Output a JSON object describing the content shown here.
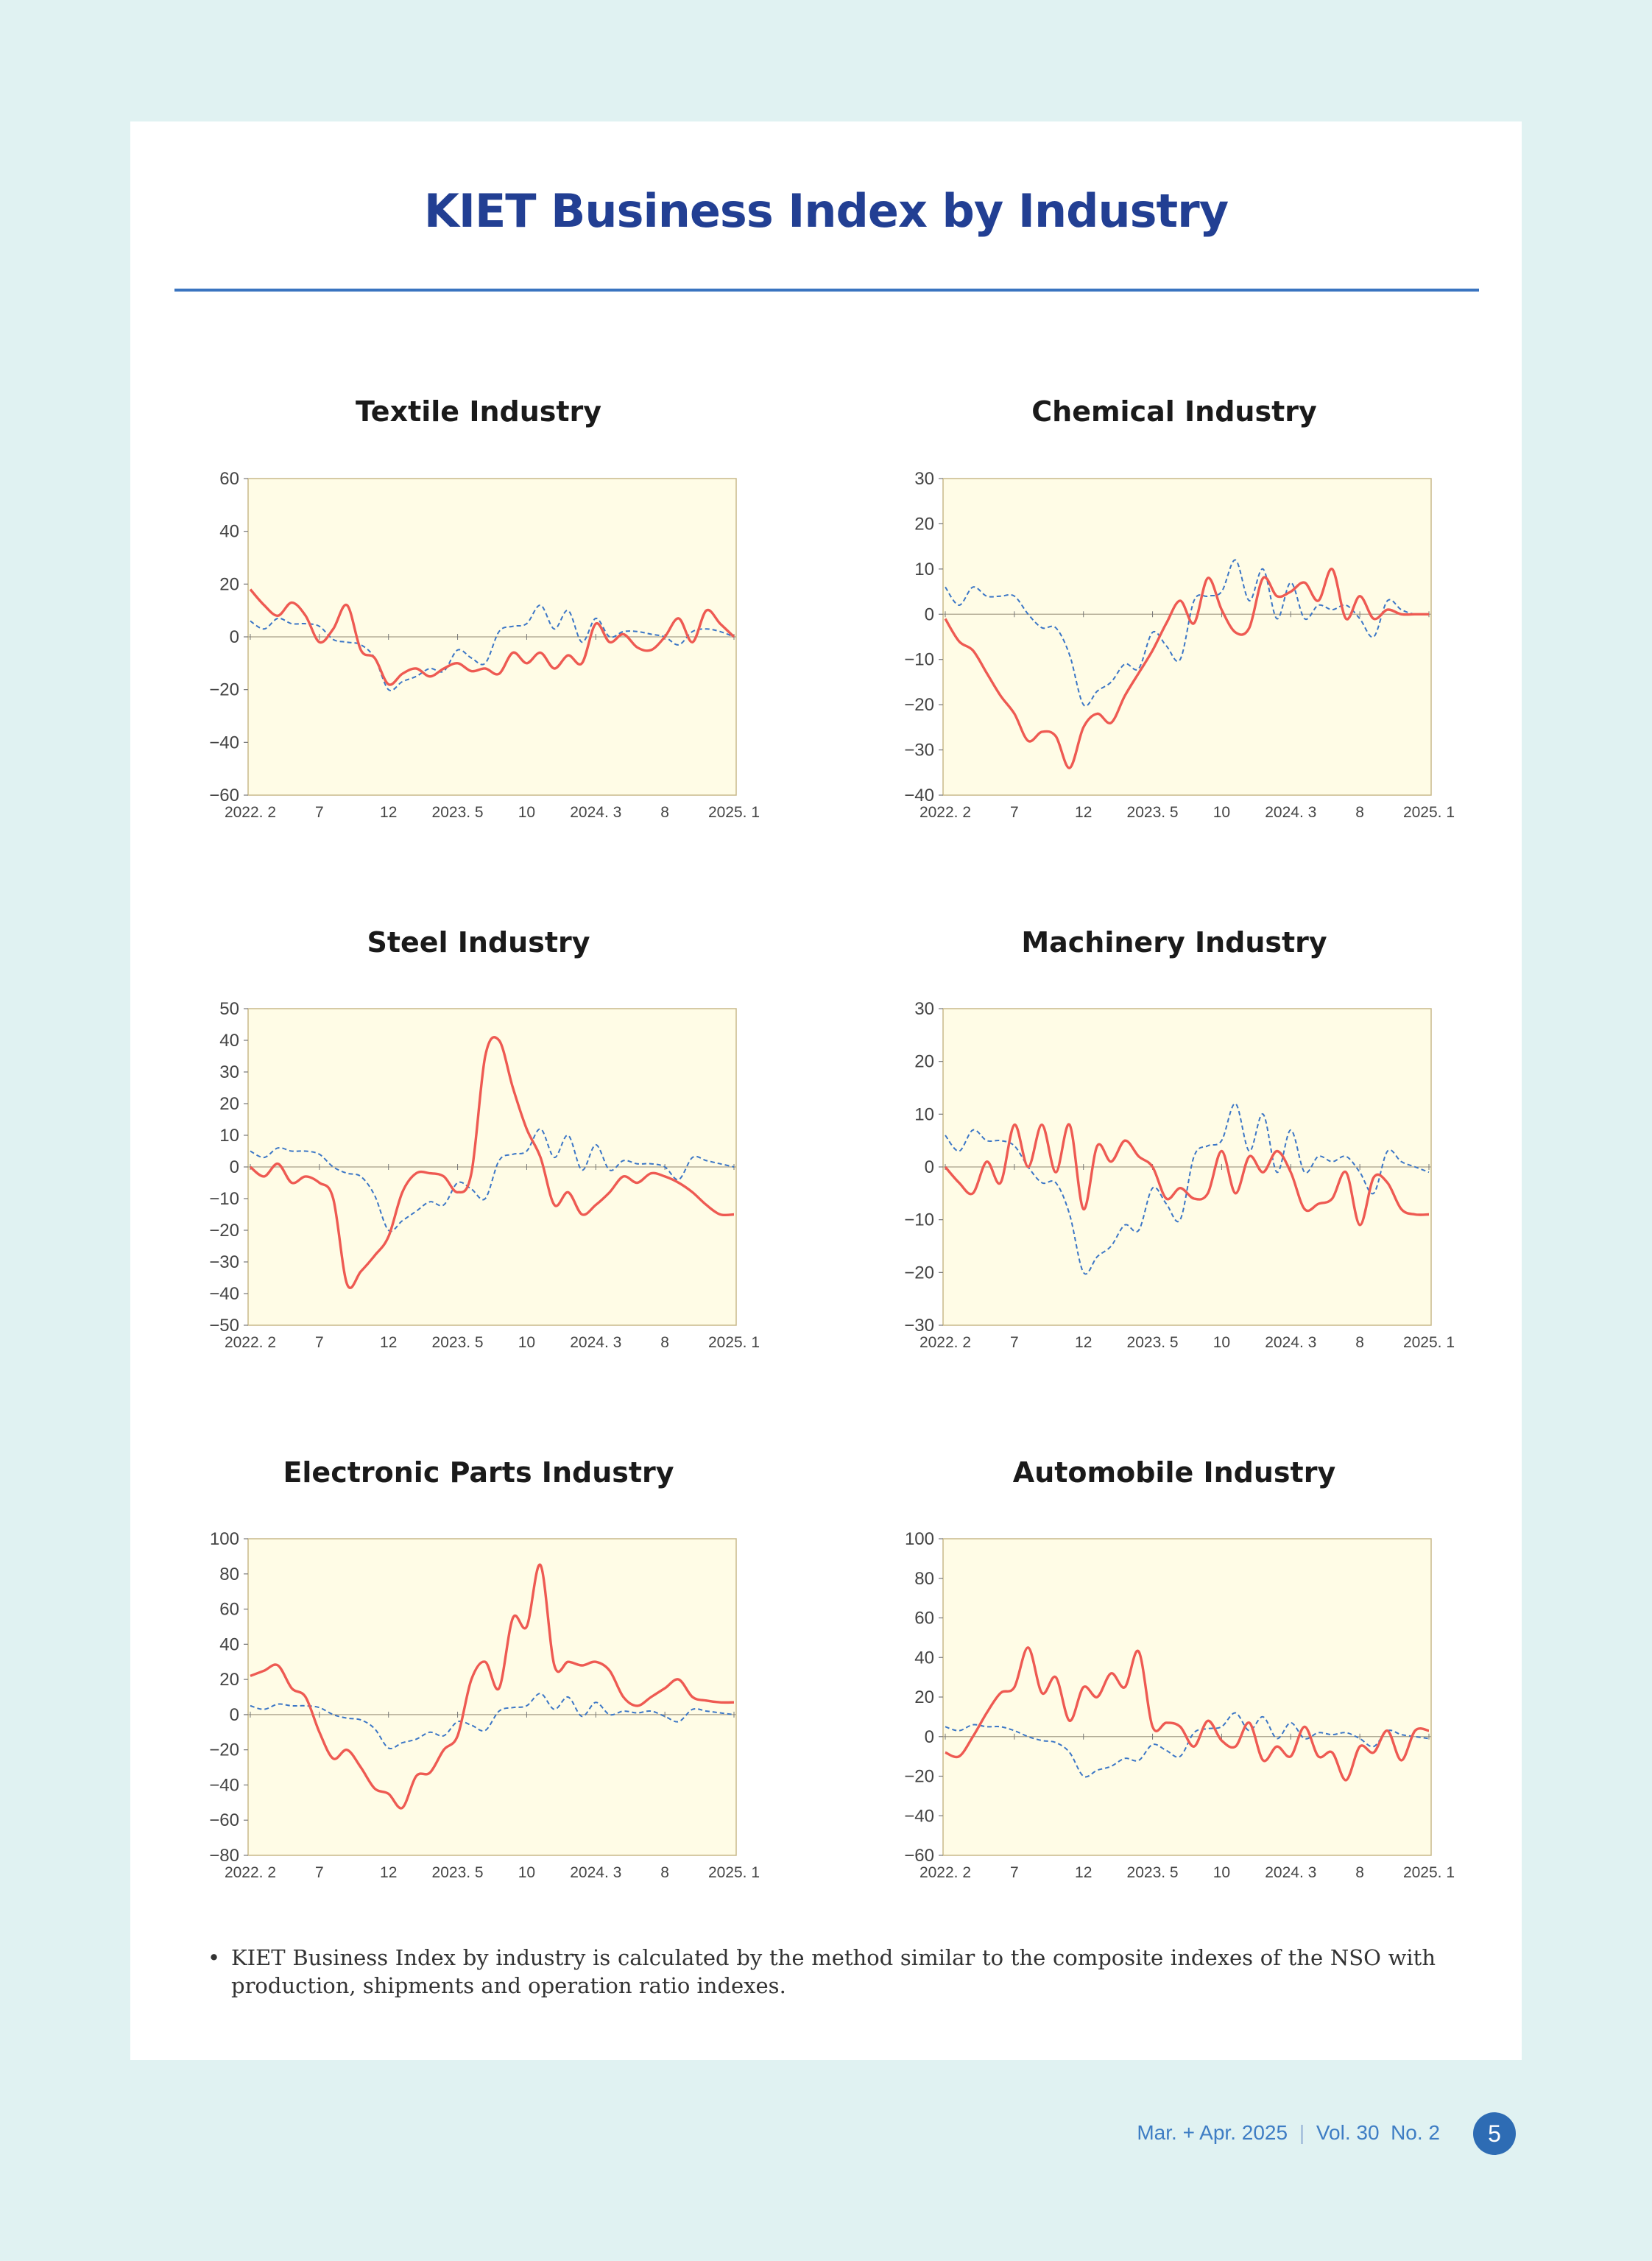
{
  "page": {
    "title": "KIET Business Index by Industry",
    "footnote_bullet": "•",
    "footnote": "KIET Business Index by industry is calculated by the method similar to the composite indexes of the NSO with production, shipments and operation ratio indexes.",
    "footer": {
      "issue": "Mar. + Apr. 2025",
      "separator": "|",
      "volume": "Vol. 30  No. 2",
      "page_number": "5"
    }
  },
  "colors": {
    "background": "#e0f2f2",
    "title": "#223f93",
    "rule": "#3a74c0",
    "plot_fill": "#fffce6",
    "plot_border": "#c9b98a",
    "solid_series": "#ee5a52",
    "dashed_series": "#3b76c6",
    "footer": "#3e7dc4"
  },
  "chart_data": [
    {
      "type": "line",
      "title": "Textile Industry",
      "x_tick_labels": [
        "2022. 2",
        "7",
        "12",
        "2023. 5",
        "10",
        "2024. 3",
        "8",
        "2025. 1"
      ],
      "x_tick_months": [
        0,
        5,
        10,
        15,
        20,
        25,
        30,
        35
      ],
      "ylim": [
        -60,
        60
      ],
      "yticks": [
        -60,
        -40,
        -20,
        0,
        20,
        40,
        60
      ],
      "series": [
        {
          "style": "solid",
          "color": "#ee5a52",
          "values": [
            18,
            12,
            8,
            13,
            8,
            -2,
            3,
            12,
            -5,
            -8,
            -18,
            -14,
            -12,
            -15,
            -12,
            -10,
            -13,
            -12,
            -14,
            -6,
            -10,
            -6,
            -12,
            -7,
            -10,
            5,
            -2,
            1,
            -4,
            -5,
            0,
            7,
            -2,
            10,
            5,
            0
          ]
        },
        {
          "style": "dashed",
          "color": "#3b76c6",
          "values": [
            6,
            3,
            7,
            5,
            5,
            4,
            -1,
            -2,
            -3,
            -8,
            -20,
            -17,
            -15,
            -12,
            -13,
            -5,
            -8,
            -10,
            2,
            4,
            5,
            12,
            3,
            10,
            -2,
            7,
            0,
            2,
            2,
            1,
            0,
            -3,
            2,
            3,
            2,
            0
          ]
        }
      ]
    },
    {
      "type": "line",
      "title": "Chemical Industry",
      "x_tick_labels": [
        "2022. 2",
        "7",
        "12",
        "2023. 5",
        "10",
        "2024. 3",
        "8",
        "2025. 1"
      ],
      "x_tick_months": [
        0,
        5,
        10,
        15,
        20,
        25,
        30,
        35
      ],
      "ylim": [
        -40,
        30
      ],
      "yticks": [
        -40,
        -30,
        -20,
        -10,
        0,
        10,
        20,
        30
      ],
      "series": [
        {
          "style": "solid",
          "color": "#ee5a52",
          "values": [
            -1,
            -6,
            -8,
            -13,
            -18,
            -22,
            -28,
            -26,
            -27,
            -34,
            -25,
            -22,
            -24,
            -18,
            -13,
            -8,
            -2,
            3,
            -2,
            8,
            1,
            -4,
            -3,
            8,
            4,
            5,
            7,
            3,
            10,
            -1,
            4,
            -1,
            1,
            0,
            0,
            0
          ]
        },
        {
          "style": "dashed",
          "color": "#3b76c6",
          "values": [
            6,
            2,
            6,
            4,
            4,
            4,
            0,
            -3,
            -3,
            -9,
            -20,
            -17,
            -15,
            -11,
            -12,
            -4,
            -7,
            -10,
            3,
            4,
            5,
            12,
            3,
            10,
            -1,
            7,
            -1,
            2,
            1,
            2,
            -1,
            -5,
            3,
            1,
            0,
            0
          ]
        }
      ]
    },
    {
      "type": "line",
      "title": "Steel Industry",
      "x_tick_labels": [
        "2022. 2",
        "7",
        "12",
        "2023. 5",
        "10",
        "2024. 3",
        "8",
        "2025. 1"
      ],
      "x_tick_months": [
        0,
        5,
        10,
        15,
        20,
        25,
        30,
        35
      ],
      "ylim": [
        -50,
        50
      ],
      "yticks": [
        -50,
        -40,
        -30,
        -20,
        -10,
        0,
        10,
        20,
        30,
        40,
        50
      ],
      "series": [
        {
          "style": "solid",
          "color": "#ee5a52",
          "values": [
            0,
            -3,
            1,
            -5,
            -3,
            -5,
            -10,
            -37,
            -33,
            -28,
            -22,
            -8,
            -2,
            -2,
            -3,
            -8,
            -2,
            35,
            40,
            25,
            12,
            3,
            -12,
            -8,
            -15,
            -12,
            -8,
            -3,
            -5,
            -2,
            -3,
            -5,
            -8,
            -12,
            -15,
            -15
          ]
        },
        {
          "style": "dashed",
          "color": "#3b76c6",
          "values": [
            5,
            3,
            6,
            5,
            5,
            4,
            0,
            -2,
            -3,
            -9,
            -20,
            -17,
            -14,
            -11,
            -12,
            -5,
            -7,
            -10,
            2,
            4,
            5,
            12,
            3,
            10,
            -1,
            7,
            -1,
            2,
            1,
            1,
            0,
            -4,
            3,
            2,
            1,
            0
          ]
        }
      ]
    },
    {
      "type": "line",
      "title": "Machinery Industry",
      "x_tick_labels": [
        "2022. 2",
        "7",
        "12",
        "2023. 5",
        "10",
        "2024. 3",
        "8",
        "2025. 1"
      ],
      "x_tick_months": [
        0,
        5,
        10,
        15,
        20,
        25,
        30,
        35
      ],
      "ylim": [
        -30,
        30
      ],
      "yticks": [
        -30,
        -20,
        -10,
        0,
        10,
        20,
        30
      ],
      "series": [
        {
          "style": "solid",
          "color": "#ee5a52",
          "values": [
            0,
            -3,
            -5,
            1,
            -3,
            8,
            0,
            8,
            -1,
            8,
            -8,
            4,
            1,
            5,
            2,
            0,
            -6,
            -4,
            -6,
            -5,
            3,
            -5,
            2,
            -1,
            3,
            -1,
            -8,
            -7,
            -6,
            -1,
            -11,
            -2,
            -3,
            -8,
            -9,
            -9
          ]
        },
        {
          "style": "dashed",
          "color": "#3b76c6",
          "values": [
            6,
            3,
            7,
            5,
            5,
            4,
            0,
            -3,
            -3,
            -9,
            -20,
            -17,
            -15,
            -11,
            -12,
            -4,
            -7,
            -10,
            2,
            4,
            5,
            12,
            3,
            10,
            -1,
            7,
            -1,
            2,
            1,
            2,
            -1,
            -5,
            3,
            1,
            0,
            -1
          ]
        }
      ]
    },
    {
      "type": "line",
      "title": "Electronic Parts Industry",
      "x_tick_labels": [
        "2022. 2",
        "7",
        "12",
        "2023. 5",
        "10",
        "2024. 3",
        "8",
        "2025. 1"
      ],
      "x_tick_months": [
        0,
        5,
        10,
        15,
        20,
        25,
        30,
        35
      ],
      "ylim": [
        -80,
        100
      ],
      "yticks": [
        -80,
        -60,
        -40,
        -20,
        0,
        20,
        40,
        60,
        80,
        100
      ],
      "series": [
        {
          "style": "solid",
          "color": "#ee5a52",
          "values": [
            22,
            25,
            28,
            15,
            10,
            -10,
            -25,
            -20,
            -30,
            -42,
            -45,
            -53,
            -35,
            -33,
            -20,
            -12,
            20,
            30,
            15,
            55,
            50,
            85,
            28,
            30,
            28,
            30,
            25,
            10,
            5,
            10,
            15,
            20,
            10,
            8,
            7,
            7
          ]
        },
        {
          "style": "dashed",
          "color": "#3b76c6",
          "values": [
            5,
            3,
            6,
            5,
            5,
            4,
            0,
            -2,
            -3,
            -8,
            -19,
            -16,
            -14,
            -10,
            -12,
            -4,
            -6,
            -9,
            2,
            4,
            5,
            12,
            3,
            10,
            -1,
            7,
            0,
            2,
            1,
            2,
            -1,
            -4,
            3,
            2,
            1,
            0
          ]
        }
      ]
    },
    {
      "type": "line",
      "title": "Automobile Industry",
      "x_tick_labels": [
        "2022. 2",
        "7",
        "12",
        "2023. 5",
        "10",
        "2024. 3",
        "8",
        "2025. 1"
      ],
      "x_tick_months": [
        0,
        5,
        10,
        15,
        20,
        25,
        30,
        35
      ],
      "ylim": [
        -60,
        100
      ],
      "yticks": [
        -60,
        -40,
        -20,
        0,
        20,
        40,
        60,
        80,
        100
      ],
      "series": [
        {
          "style": "solid",
          "color": "#ee5a52",
          "values": [
            -8,
            -10,
            0,
            12,
            22,
            25,
            45,
            22,
            30,
            8,
            25,
            20,
            32,
            25,
            43,
            5,
            7,
            5,
            -5,
            8,
            -2,
            -5,
            7,
            -12,
            -5,
            -10,
            5,
            -10,
            -8,
            -22,
            -5,
            -8,
            3,
            -12,
            3,
            3
          ]
        },
        {
          "style": "dashed",
          "color": "#3b76c6",
          "values": [
            5,
            3,
            6,
            5,
            5,
            3,
            0,
            -2,
            -3,
            -8,
            -20,
            -17,
            -15,
            -11,
            -12,
            -4,
            -7,
            -10,
            2,
            4,
            5,
            12,
            3,
            10,
            -1,
            7,
            -1,
            2,
            1,
            2,
            -1,
            -5,
            3,
            1,
            0,
            -1
          ]
        }
      ]
    }
  ]
}
